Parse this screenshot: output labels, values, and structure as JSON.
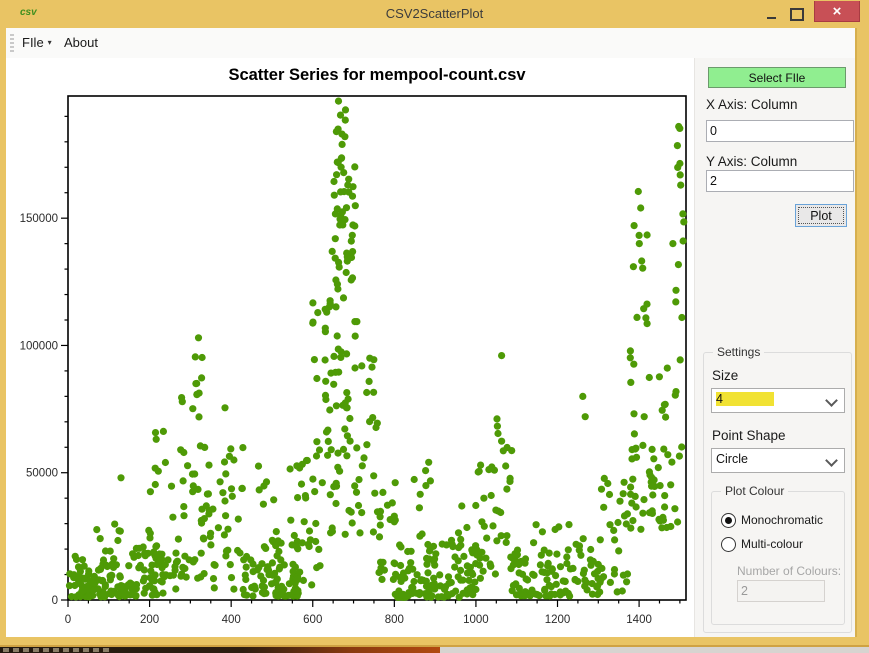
{
  "window": {
    "title": "CSV2ScatterPlot"
  },
  "icons": {
    "app": "csv",
    "minimize": "minimize-dash",
    "maximize": "restore-square",
    "close": "×",
    "menu_caret": "▾",
    "combo_chevron": "chevron-down"
  },
  "menu": {
    "items": [
      {
        "label": "FIle",
        "has_dropdown": true
      },
      {
        "label": "About",
        "has_dropdown": false
      }
    ]
  },
  "chart": {
    "title": "Scatter Series for mempool-count.csv"
  },
  "chart_data": {
    "type": "scatter",
    "title": "Scatter Series for mempool-count.csv",
    "xlabel": "",
    "ylabel": "",
    "point_color": "#4e9a06",
    "point_size": 4,
    "point_shape": "circle",
    "grid": false,
    "seed": 42,
    "x_axis": {
      "min": 0,
      "max": 1515,
      "major_tick": 200,
      "minor_tick": 50,
      "tick_labels": [
        "0",
        "200",
        "400",
        "600",
        "800",
        "1000",
        "1200",
        "1400"
      ]
    },
    "y_axis": {
      "min": 0,
      "max": 198000,
      "major_tick": 50000,
      "minor_tick": 10000,
      "tick_labels": [
        "0",
        "50000",
        "100000",
        "150000"
      ]
    },
    "clusters": [
      {
        "x": [
          3,
          150
        ],
        "n": 95,
        "y": [
          1200,
          16000
        ],
        "k": 1.6
      },
      {
        "x": [
          8,
          148
        ],
        "n": 10,
        "y": [
          16000,
          30000
        ],
        "k": 1.4
      },
      {
        "x": [
          150,
          270
        ],
        "n": 68,
        "y": [
          1500,
          22000
        ],
        "k": 1.5
      },
      {
        "x": [
          195,
          265
        ],
        "n": 10,
        "y": [
          24000,
          58000
        ],
        "k": 1.3
      },
      {
        "x": [
          205,
          245
        ],
        "n": 3,
        "y": [
          60000,
          72000
        ],
        "k": 1.0
      },
      {
        "x": [
          268,
          345
        ],
        "n": 40,
        "y": [
          8000,
          80000
        ],
        "k": 1.4
      },
      {
        "x": [
          300,
          332
        ],
        "n": 7,
        "y": [
          80000,
          100000
        ],
        "k": 1.0
      },
      {
        "x": [
          345,
          430
        ],
        "n": 38,
        "y": [
          4000,
          62000
        ],
        "k": 1.8
      },
      {
        "x": [
          430,
          565
        ],
        "n": 85,
        "y": [
          1500,
          28000
        ],
        "k": 1.8
      },
      {
        "x": [
          440,
          560
        ],
        "n": 8,
        "y": [
          30000,
          55000
        ],
        "k": 1.2
      },
      {
        "x": [
          560,
          625
        ],
        "n": 30,
        "y": [
          4000,
          55000
        ],
        "k": 1.2
      },
      {
        "x": [
          600,
          645
        ],
        "n": 18,
        "y": [
          55000,
          120000
        ],
        "k": 1.1
      },
      {
        "x": [
          625,
          715
        ],
        "n": 55,
        "y": [
          25000,
          120000
        ],
        "k": 1.2
      },
      {
        "x": [
          645,
          705
        ],
        "n": 45,
        "y": [
          120000,
          172000
        ],
        "k": 0.9
      },
      {
        "x": [
          655,
          685
        ],
        "n": 8,
        "y": [
          172000,
          193000
        ],
        "k": 1.0
      },
      {
        "x": [
          705,
          760
        ],
        "n": 22,
        "y": [
          25000,
          95000
        ],
        "k": 1.4
      },
      {
        "x": [
          755,
          805
        ],
        "n": 20,
        "y": [
          8000,
          48000
        ],
        "k": 1.6
      },
      {
        "x": [
          795,
          1005
        ],
        "n": 115,
        "y": [
          1000,
          22000
        ],
        "k": 1.7
      },
      {
        "x": [
          840,
          890
        ],
        "n": 9,
        "y": [
          22000,
          56000
        ],
        "k": 1.3
      },
      {
        "x": [
          920,
          1000
        ],
        "n": 12,
        "y": [
          20000,
          38000
        ],
        "k": 1.3
      },
      {
        "x": [
          1000,
          1048
        ],
        "n": 25,
        "y": [
          8000,
          55000
        ],
        "k": 1.3
      },
      {
        "x": [
          1048,
          1088
        ],
        "n": 18,
        "y": [
          20000,
          80000
        ],
        "k": 1.2
      },
      {
        "x": [
          1085,
          1235
        ],
        "n": 75,
        "y": [
          1500,
          20000
        ],
        "k": 1.7
      },
      {
        "x": [
          1100,
          1230
        ],
        "n": 6,
        "y": [
          22000,
          36000
        ],
        "k": 1.2
      },
      {
        "x": [
          1235,
          1305
        ],
        "n": 28,
        "y": [
          2000,
          26000
        ],
        "k": 1.5
      },
      {
        "x": [
          1300,
          1372
        ],
        "n": 30,
        "y": [
          3000,
          50000
        ],
        "k": 1.4
      },
      {
        "x": [
          1372,
          1428
        ],
        "n": 26,
        "y": [
          25000,
          100000
        ],
        "k": 1.1
      },
      {
        "x": [
          1385,
          1420
        ],
        "n": 12,
        "y": [
          100000,
          148000
        ],
        "k": 1.0
      },
      {
        "x": [
          1425,
          1480
        ],
        "n": 26,
        "y": [
          28000,
          62000
        ],
        "k": 1.2
      },
      {
        "x": [
          1445,
          1470
        ],
        "n": 6,
        "y": [
          62000,
          92000
        ],
        "k": 1.2
      },
      {
        "x": [
          1490,
          1510
        ],
        "n": 9,
        "y": [
          108000,
          186000
        ],
        "k": 0.9
      },
      {
        "x": [
          1480,
          1510
        ],
        "n": 8,
        "y": [
          30000,
          95000
        ],
        "k": 1.2
      }
    ],
    "notable_points": [
      [
        130,
        48000
      ],
      [
        320,
        103000
      ],
      [
        312,
        95500
      ],
      [
        385,
        75500
      ],
      [
        663,
        196000
      ],
      [
        668,
        190500
      ],
      [
        658,
        184000
      ],
      [
        672,
        179000
      ],
      [
        1063,
        96000
      ],
      [
        1262,
        80000
      ],
      [
        1268,
        72000
      ],
      [
        1398,
        160500
      ],
      [
        1404,
        154000
      ],
      [
        1483,
        140000
      ],
      [
        1497,
        186000
      ],
      [
        1494,
        178500
      ],
      [
        1500,
        171500
      ],
      [
        1502,
        163000
      ],
      [
        1505,
        111000
      ]
    ]
  },
  "panel": {
    "select_file_label": "Select FIle",
    "x_axis_label": "X Axis: Column",
    "x_axis_value": "0",
    "y_axis_label": "Y Axis: Column",
    "y_axis_value": "2",
    "plot_label": "Plot",
    "settings": {
      "title": "Settings",
      "size_label": "Size",
      "size_value": "4",
      "point_shape_label": "Point Shape",
      "point_shape_value": "Circle",
      "plot_colour": {
        "title": "Plot Colour",
        "options": [
          "Monochromatic",
          "Multi-colour"
        ],
        "selected": "Monochromatic",
        "number_label": "Number of Colours:",
        "number_value": "2"
      }
    }
  },
  "colors": {
    "titlebar": "#e9c464",
    "close_red": "#c85056",
    "point_green": "#4e9a06",
    "select_button_green": "#90ee90",
    "size_highlight_yellow": "#f1e233"
  }
}
